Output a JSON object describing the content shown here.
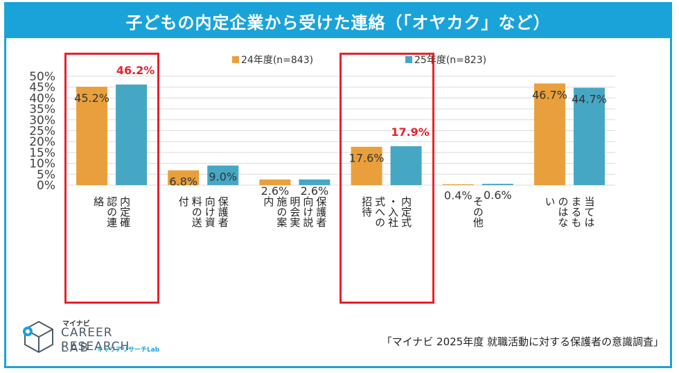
{
  "title": "子どもの内定企業から受けた連絡（「オヤカク」など）",
  "chart_data": {
    "type": "bar",
    "ylim": [
      0,
      50
    ],
    "y_ticks": [
      "0%",
      "5%",
      "10%",
      "15%",
      "20%",
      "25%",
      "30%",
      "35%",
      "40%",
      "45%",
      "50%"
    ],
    "categories": [
      [
        "内定確",
        "認の連",
        "絡"
      ],
      [
        "保護者",
        "向け資",
        "料の送",
        "付"
      ],
      [
        "保護者",
        "向け説",
        "明会実",
        "施の案",
        "内"
      ],
      [
        "内定式",
        "・入社",
        "式への",
        "招待"
      ],
      [
        "その他"
      ],
      [
        "当ては",
        "まるも",
        "のはな",
        "い"
      ]
    ],
    "series": [
      {
        "name": "24年度(n=843)",
        "color": "#e9a03c",
        "values": [
          45.2,
          6.8,
          2.6,
          17.6,
          0.4,
          46.7
        ],
        "labels": [
          "45.2%",
          "6.8%",
          "2.6%",
          "17.6%",
          "0.4%",
          "46.7%"
        ]
      },
      {
        "name": "25年度(n=823)",
        "color": "#46a7c4",
        "values": [
          46.2,
          9.0,
          2.6,
          17.9,
          0.6,
          44.7
        ],
        "labels": [
          "46.2%",
          "9.0%",
          "2.6%",
          "17.9%",
          "0.6%",
          "44.7%"
        ]
      }
    ],
    "highlighted_categories": [
      0,
      3
    ],
    "highlight_color": "#e8202a",
    "grid": true,
    "legend_position": "top"
  },
  "logo": {
    "kana": "マイナビ",
    "line1": "CAREER RESEARCH",
    "line2": "LAB",
    "sub": "キャリアリサーチLab"
  },
  "source": "「マイナビ 2025年度 就職活動に対する保護者の意識調査」"
}
